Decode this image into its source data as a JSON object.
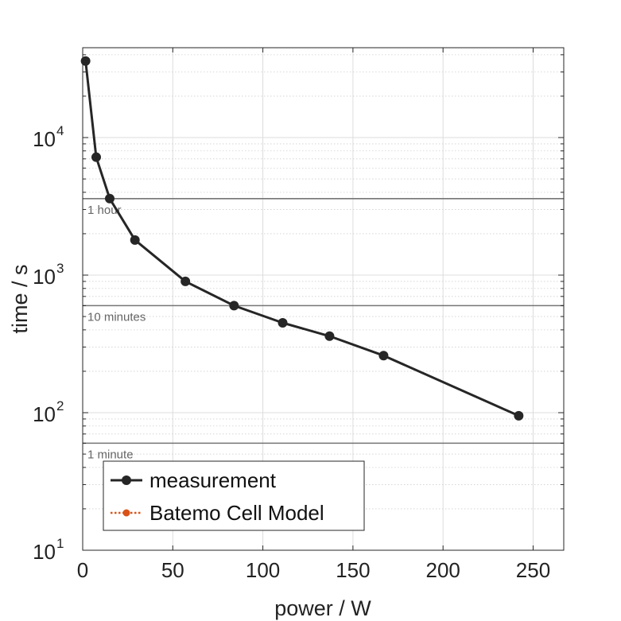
{
  "chart_data": {
    "type": "line",
    "title": "",
    "xlabel": "power / W",
    "ylabel": "time / s",
    "xlim": [
      0,
      267
    ],
    "ylim": [
      10,
      45000
    ],
    "yscale": "log",
    "grid": true,
    "x_ticks": [
      0,
      50,
      100,
      150,
      200,
      250
    ],
    "y_ticks": [
      {
        "value": 10,
        "base": "10",
        "exp": "1"
      },
      {
        "value": 100,
        "base": "10",
        "exp": "2"
      },
      {
        "value": 1000,
        "base": "10",
        "exp": "3"
      },
      {
        "value": 10000,
        "base": "10",
        "exp": "4"
      }
    ],
    "legend_position": "bottom-left",
    "series": [
      {
        "name": "measurement",
        "color": "#262626",
        "marker": "circle",
        "line": "solid",
        "x": [
          1.6,
          7.5,
          15,
          29,
          57,
          84,
          111,
          137,
          167,
          242
        ],
        "y": [
          36000,
          7200,
          3600,
          1800,
          900,
          600,
          450,
          360,
          260,
          95
        ]
      },
      {
        "name": "Batemo Cell Model",
        "color": "#d95319",
        "marker": "circle",
        "line": "dotted",
        "x": [],
        "y": []
      }
    ],
    "reference_lines": [
      {
        "value": 3600,
        "label": "1 hour",
        "color": "#757575"
      },
      {
        "value": 600,
        "label": "10 minutes",
        "color": "#757575"
      },
      {
        "value": 60,
        "label": "1 minute",
        "color": "#757575"
      }
    ]
  }
}
